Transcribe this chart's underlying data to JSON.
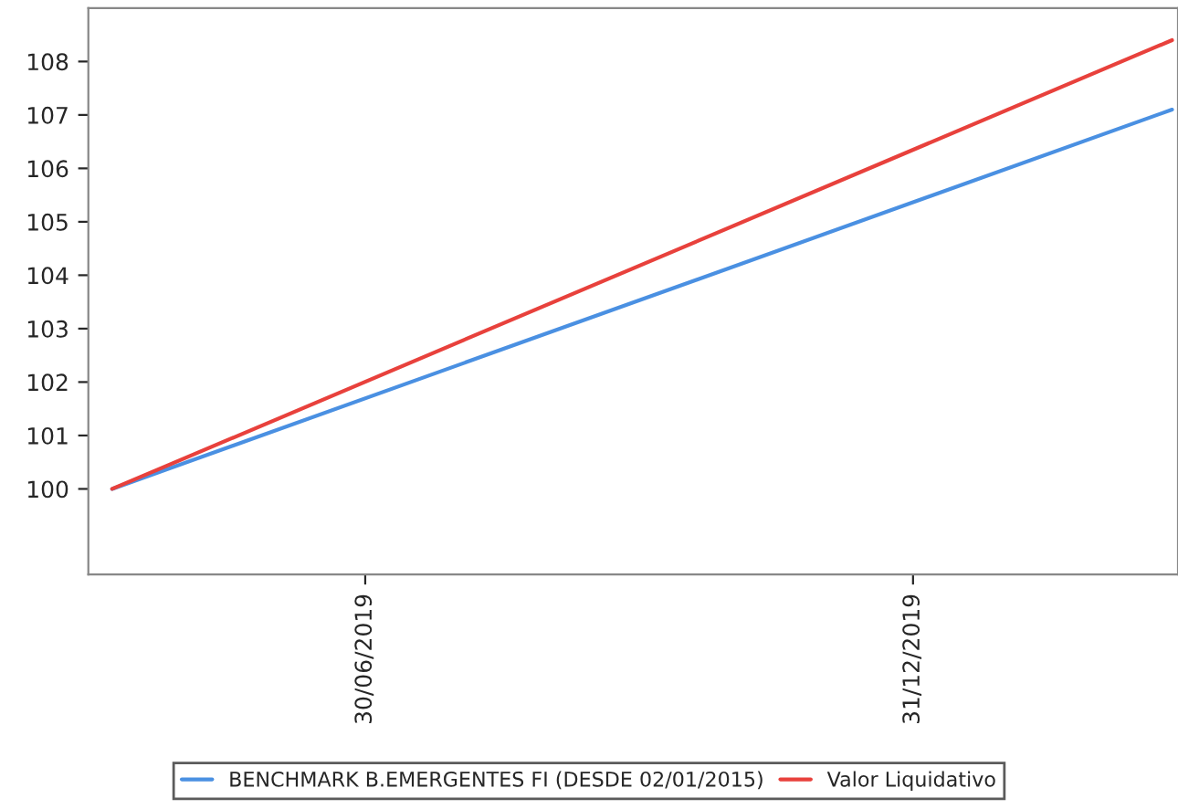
{
  "chart_data": {
    "type": "line",
    "x": [
      "2019-04-06",
      "2020-03-27"
    ],
    "series": [
      {
        "name": "BENCHMARK B.EMERGENTES FI (DESDE 02/01/2015)",
        "color": "#4a90e2",
        "values": [
          100,
          107.1
        ]
      },
      {
        "name": "Valor Liquidativo",
        "color": "#e8413c",
        "values": [
          100,
          108.4
        ]
      }
    ],
    "xlim": [
      "2019-03-29",
      "2020-03-29"
    ],
    "xticks": [
      {
        "value": "2019-06-30",
        "label": "30/06/2019"
      },
      {
        "value": "2019-12-31",
        "label": "31/12/2019"
      }
    ],
    "ylim": [
      98.4,
      109.0
    ],
    "yticks": [
      100,
      101,
      102,
      103,
      104,
      105,
      106,
      107,
      108
    ],
    "grid": false,
    "legend": "bottom",
    "marker": "none",
    "line_style": "solid"
  }
}
